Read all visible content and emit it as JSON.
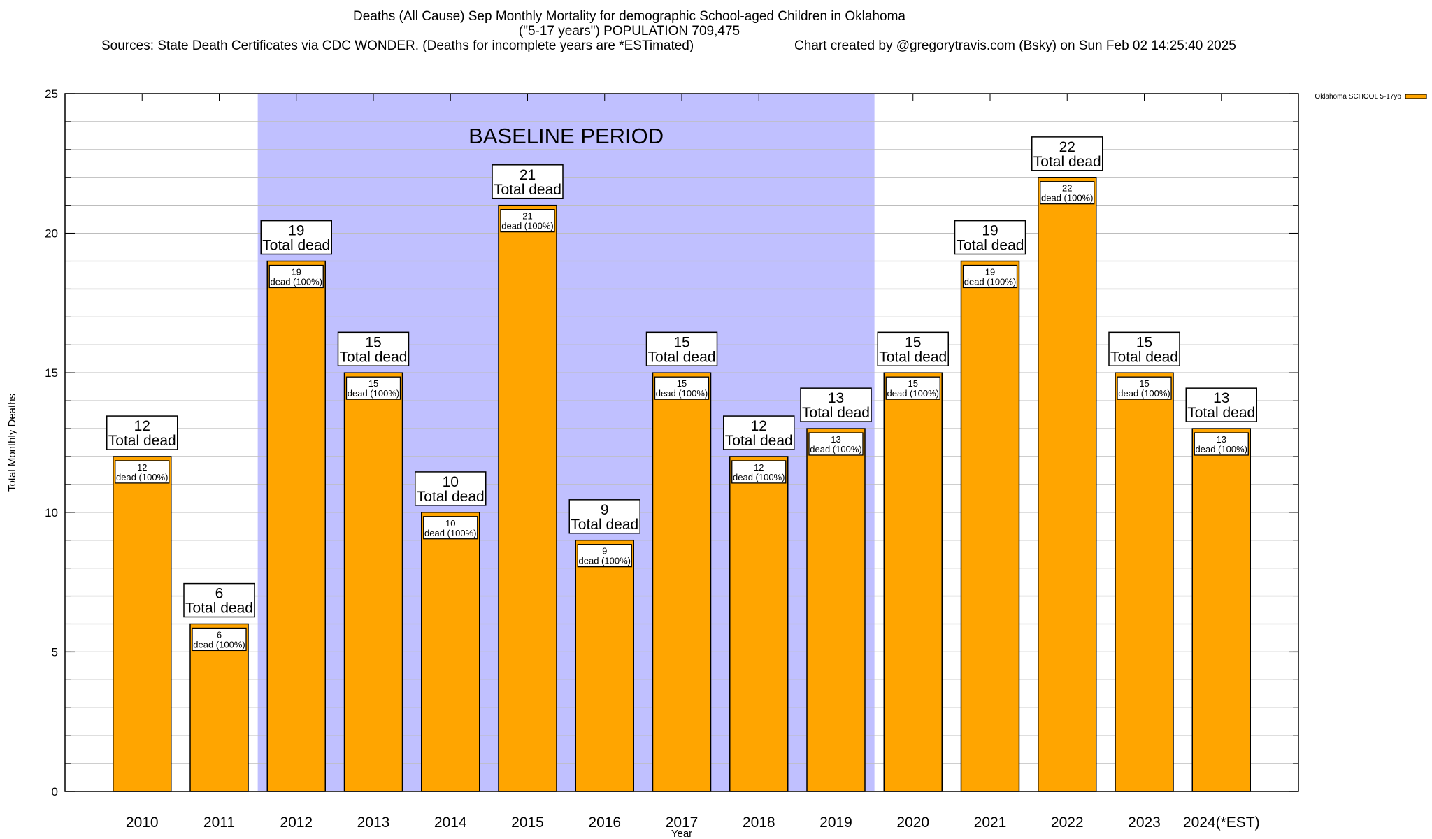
{
  "chart_data": {
    "type": "bar",
    "title": "Deaths (All Cause) Sep Monthly Mortality for demographic School-aged Children in Oklahoma",
    "subtitle": "(\"5-17 years\") POPULATION 709,475",
    "sources": "Sources: State Death Certificates via CDC WONDER. (Deaths for incomplete years are *ESTimated)",
    "credit": "Chart created by @gregorytravis.com (Bsky) on Sun Feb 02 14:25:40 2025",
    "xlabel": "Year",
    "ylabel": "Total Monthly Deaths",
    "ylim": [
      0,
      25
    ],
    "yticks": [
      0,
      5,
      10,
      15,
      20,
      25
    ],
    "grid": "horizontal, every 1",
    "legend_position": "top-right, outside",
    "categories": [
      "2010",
      "2011",
      "2012",
      "2013",
      "2014",
      "2015",
      "2016",
      "2017",
      "2018",
      "2019",
      "2020",
      "2021",
      "2022",
      "2023",
      "2024(*EST)"
    ],
    "series": [
      {
        "name": "Oklahoma SCHOOL 5-17yo",
        "color": "#ffa500",
        "values": [
          12,
          6,
          19,
          15,
          10,
          21,
          9,
          15,
          12,
          13,
          15,
          19,
          22,
          15,
          13
        ]
      }
    ],
    "total_label": "Total dead",
    "segment_label": "dead (100%)",
    "annotation": {
      "text": "BASELINE PERIOD",
      "from": "2012",
      "to": "2019",
      "color": "#c0c0ff"
    }
  }
}
